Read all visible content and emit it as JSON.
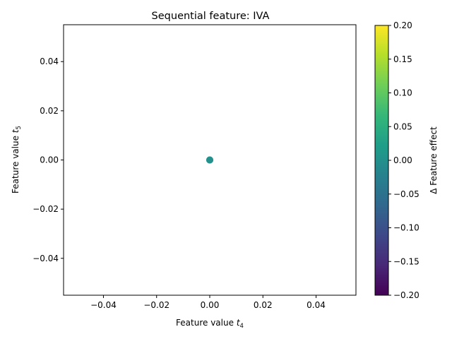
{
  "chart_data": {
    "type": "scatter",
    "title": "Sequential feature: IVA",
    "xlabel": "Feature value ",
    "xlabel_subscript": "4",
    "xlabel_var": "t",
    "ylabel": "Feature value ",
    "ylabel_subscript": "5",
    "ylabel_var": "t",
    "xlim": [
      -0.055,
      0.055
    ],
    "ylim": [
      -0.055,
      0.055
    ],
    "xticks": [
      -0.04,
      -0.02,
      0.0,
      0.02,
      0.04
    ],
    "yticks": [
      -0.04,
      -0.02,
      0.0,
      0.02,
      0.04
    ],
    "xtick_labels": [
      "−0.04",
      "−0.02",
      "0.00",
      "0.02",
      "0.04"
    ],
    "ytick_labels": [
      "−0.04",
      "−0.02",
      "0.00",
      "0.02",
      "0.04"
    ],
    "points": [
      {
        "x": 0.0,
        "y": 0.0,
        "c": 0.0
      },
      {
        "x": 0.0,
        "y": 0.0,
        "c": 0.0
      },
      {
        "x": 0.0,
        "y": 0.0,
        "c": 0.0
      }
    ],
    "colorbar": {
      "label": "Δ Feature effect",
      "cmap": "viridis",
      "range": [
        -0.2,
        0.2
      ],
      "ticks": [
        -0.2,
        -0.15,
        -0.1,
        -0.05,
        0.0,
        0.05,
        0.1,
        0.15,
        0.2
      ],
      "tick_labels": [
        "−0.20",
        "−0.15",
        "−0.10",
        "−0.05",
        "0.00",
        "0.05",
        "0.10",
        "0.15",
        "0.20"
      ]
    },
    "colors": {
      "viridis": [
        "#440154",
        "#482878",
        "#3e4989",
        "#31688e",
        "#26828e",
        "#1f9e89",
        "#35b779",
        "#6ece58",
        "#b5de2b",
        "#fde725"
      ]
    }
  }
}
